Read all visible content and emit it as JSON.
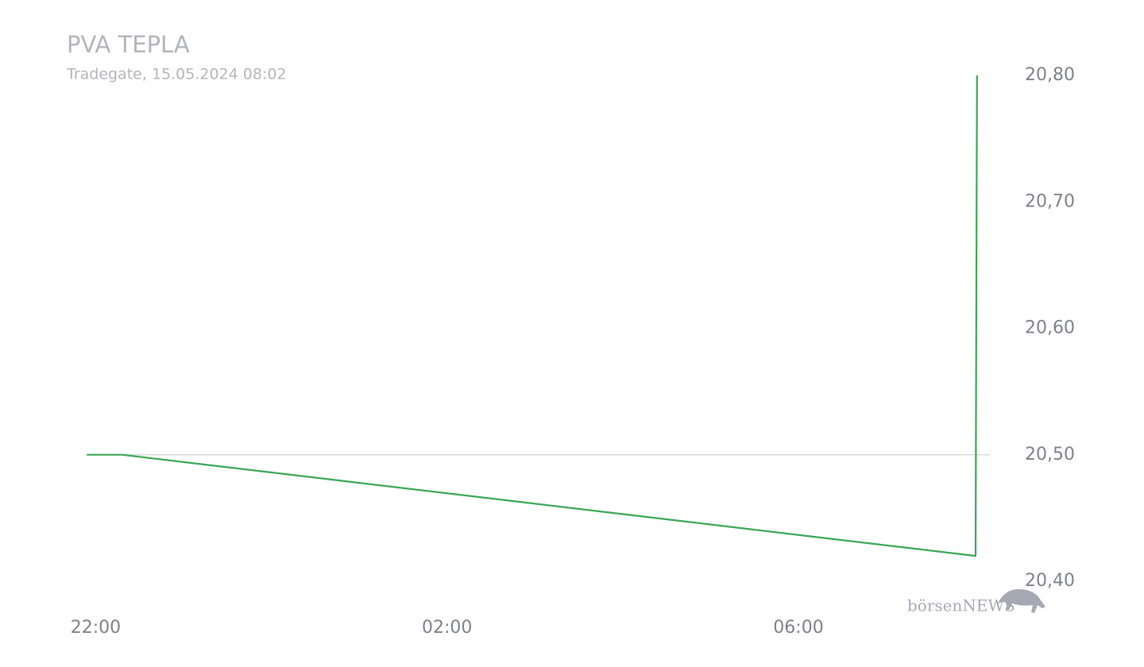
{
  "chart_data": {
    "type": "line",
    "title": "PVA TEPLA",
    "subtitle": "Tradegate, 15.05.2024 08:02",
    "watermark": "börsenNEWS",
    "x": [
      "21:54",
      "22:18",
      "08:01",
      "08:02"
    ],
    "series": [
      {
        "name": "PVA TEPLA",
        "color": "#3aa655",
        "values": [
          20.5,
          20.5,
          20.42,
          20.8
        ]
      }
    ],
    "xlim": [
      "21:50",
      "08:20"
    ],
    "xticks": [
      "22:00",
      "02:00",
      "06:00"
    ],
    "ylim": [
      20.4,
      20.8
    ],
    "yticks": [
      {
        "value": 20.4,
        "label": "20,40"
      },
      {
        "value": 20.5,
        "label": "20,50"
      },
      {
        "value": 20.6,
        "label": "20,60"
      },
      {
        "value": 20.7,
        "label": "20,70"
      },
      {
        "value": 20.8,
        "label": "20,80"
      }
    ],
    "reference_line": 20.5
  }
}
